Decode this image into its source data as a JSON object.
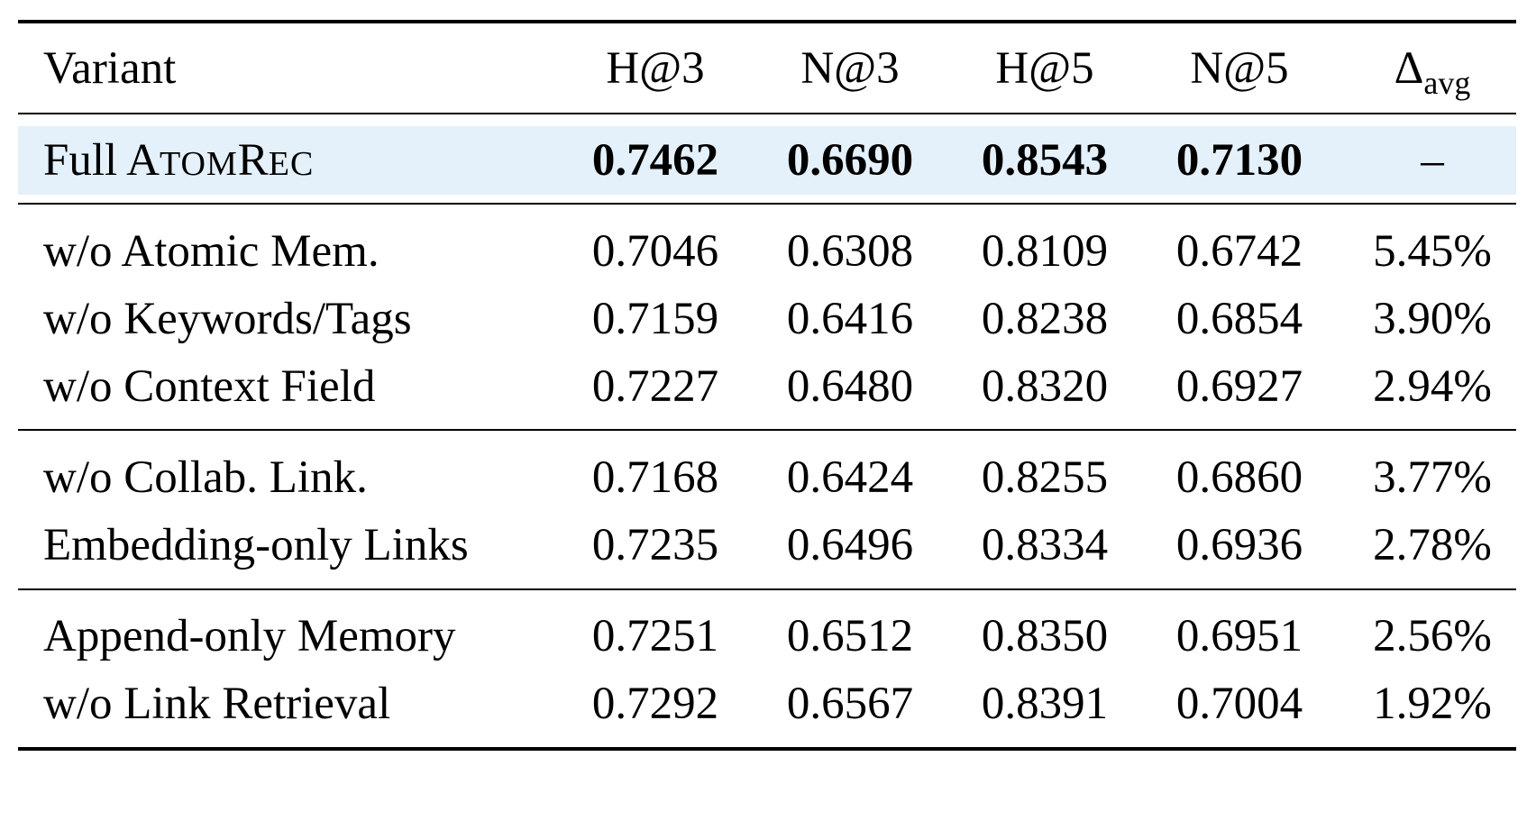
{
  "table": {
    "header": {
      "variant": "Variant",
      "h3": "H@3",
      "n3": "N@3",
      "h5": "H@5",
      "n5": "N@5",
      "delta_symbol": "Δ",
      "delta_sub": "avg"
    },
    "full": {
      "prefix": "Full ",
      "name_parts": [
        "A",
        "TOM",
        "R",
        "EC"
      ],
      "h3": "0.7462",
      "n3": "0.6690",
      "h5": "0.8543",
      "n5": "0.7130",
      "delta": "–"
    },
    "rows": [
      {
        "variant": "w/o Atomic Mem.",
        "h3": "0.7046",
        "n3": "0.6308",
        "h5": "0.8109",
        "n5": "0.6742",
        "delta": "5.45%"
      },
      {
        "variant": "w/o Keywords/Tags",
        "h3": "0.7159",
        "n3": "0.6416",
        "h5": "0.8238",
        "n5": "0.6854",
        "delta": "3.90%"
      },
      {
        "variant": "w/o Context Field",
        "h3": "0.7227",
        "n3": "0.6480",
        "h5": "0.8320",
        "n5": "0.6927",
        "delta": "2.94%"
      },
      {
        "variant": "w/o Collab. Link.",
        "h3": "0.7168",
        "n3": "0.6424",
        "h5": "0.8255",
        "n5": "0.6860",
        "delta": "3.77%"
      },
      {
        "variant": "Embedding-only Links",
        "h3": "0.7235",
        "n3": "0.6496",
        "h5": "0.8334",
        "n5": "0.6936",
        "delta": "2.78%"
      },
      {
        "variant": "Append-only Memory",
        "h3": "0.7251",
        "n3": "0.6512",
        "h5": "0.8350",
        "n5": "0.6951",
        "delta": "2.56%"
      },
      {
        "variant": "w/o Link Retrieval",
        "h3": "0.7292",
        "n3": "0.6567",
        "h5": "0.8391",
        "n5": "0.7004",
        "delta": "1.92%"
      }
    ],
    "colors": {
      "highlight": "#e4f0fa",
      "rule": "#000000"
    }
  }
}
